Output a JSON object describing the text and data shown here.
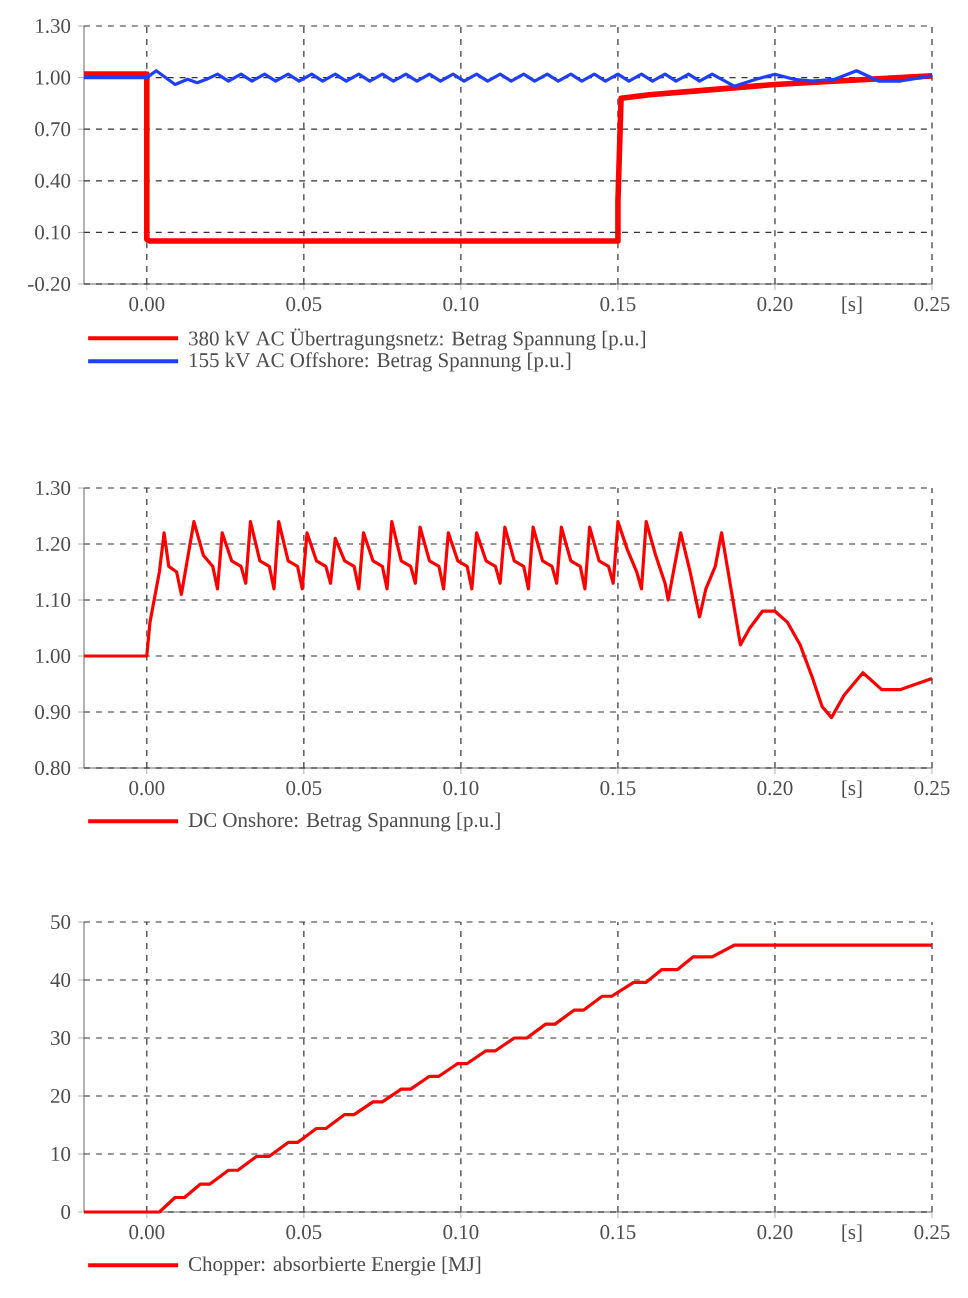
{
  "chart_data": [
    {
      "type": "line",
      "xlabel": "[s]",
      "xlim": [
        -0.02,
        0.25
      ],
      "ylim": [
        -0.2,
        1.3
      ],
      "xticks": [
        {
          "value": 0,
          "label": "0.00"
        },
        {
          "value": 0.05,
          "label": "0.05"
        },
        {
          "value": 0.1,
          "label": "0.10"
        },
        {
          "value": 0.15,
          "label": "0.15"
        },
        {
          "value": 0.2,
          "label": "0.20"
        },
        {
          "value": 0.25,
          "label": "0.25"
        }
      ],
      "yticks": [
        {
          "value": -0.2,
          "label": "-0.20"
        },
        {
          "value": 0.1,
          "label": "0.10"
        },
        {
          "value": 0.4,
          "label": "0.40"
        },
        {
          "value": 0.7,
          "label": "0.70"
        },
        {
          "value": 1.0,
          "label": "1.00"
        },
        {
          "value": 1.3,
          "label": "1.30"
        }
      ],
      "grid": true,
      "legend": "bottom",
      "series": [
        {
          "name": "380 kV AC Übertragungsnetz: Betrag Spannung [p.u.]",
          "color": "#ff0000",
          "x": [
            -0.02,
            0,
            0,
            0.001,
            0.15,
            0.15,
            0.151,
            0.16,
            0.18,
            0.2,
            0.22,
            0.24,
            0.25
          ],
          "values": [
            1.02,
            1.02,
            0.06,
            0.05,
            0.05,
            0.28,
            0.88,
            0.9,
            0.93,
            0.96,
            0.98,
            1.0,
            1.01
          ]
        },
        {
          "name": "155 kV AC Offshore: Betrag Spannung [p.u.]",
          "color": "#1f3fff",
          "x": [
            -0.02,
            0,
            0.003,
            0.009,
            0.013,
            0.016,
            0.019,
            0.0225,
            0.026,
            0.03,
            0.0335,
            0.0375,
            0.041,
            0.045,
            0.0485,
            0.0525,
            0.056,
            0.06,
            0.0635,
            0.0675,
            0.071,
            0.075,
            0.0785,
            0.0825,
            0.086,
            0.09,
            0.0935,
            0.0975,
            0.101,
            0.105,
            0.1085,
            0.1125,
            0.116,
            0.12,
            0.1235,
            0.1275,
            0.131,
            0.135,
            0.1385,
            0.1425,
            0.146,
            0.15,
            0.1535,
            0.1575,
            0.161,
            0.165,
            0.1685,
            0.1725,
            0.176,
            0.18,
            0.187,
            0.194,
            0.2,
            0.206,
            0.212,
            0.219,
            0.226,
            0.233,
            0.24,
            0.25
          ],
          "values": [
            1.0,
            1.0,
            1.04,
            0.96,
            0.99,
            0.97,
            0.99,
            1.02,
            0.98,
            1.02,
            0.98,
            1.02,
            0.98,
            1.02,
            0.98,
            1.02,
            0.98,
            1.02,
            0.98,
            1.02,
            0.98,
            1.02,
            0.98,
            1.02,
            0.98,
            1.02,
            0.98,
            1.02,
            0.98,
            1.02,
            0.98,
            1.02,
            0.98,
            1.02,
            0.98,
            1.02,
            0.98,
            1.02,
            0.98,
            1.02,
            0.98,
            1.02,
            0.98,
            1.02,
            0.98,
            1.02,
            0.98,
            1.02,
            0.98,
            1.02,
            0.95,
            0.99,
            1.02,
            0.99,
            0.98,
            0.99,
            1.04,
            0.98,
            0.98,
            1.01
          ]
        }
      ]
    },
    {
      "type": "line",
      "xlabel": "[s]",
      "xlim": [
        -0.02,
        0.25
      ],
      "ylim": [
        0.8,
        1.3
      ],
      "xticks": [
        {
          "value": 0,
          "label": "0.00"
        },
        {
          "value": 0.05,
          "label": "0.05"
        },
        {
          "value": 0.1,
          "label": "0.10"
        },
        {
          "value": 0.15,
          "label": "0.15"
        },
        {
          "value": 0.2,
          "label": "0.20"
        },
        {
          "value": 0.25,
          "label": "0.25"
        }
      ],
      "yticks": [
        {
          "value": 0.8,
          "label": "0.80"
        },
        {
          "value": 0.9,
          "label": "0.90"
        },
        {
          "value": 1.0,
          "label": "1.00"
        },
        {
          "value": 1.1,
          "label": "1.10"
        },
        {
          "value": 1.2,
          "label": "1.20"
        },
        {
          "value": 1.3,
          "label": "1.30"
        }
      ],
      "grid": true,
      "legend": "bottom",
      "series": [
        {
          "name": "DC Onshore: Betrag Spannung [p.u.]",
          "color": "#ff0000",
          "x": [
            -0.02,
            0,
            0.001,
            0.004,
            0.0055,
            0.007,
            0.0095,
            0.011,
            0.015,
            0.018,
            0.021,
            0.0225,
            0.024,
            0.027,
            0.03,
            0.0315,
            0.033,
            0.036,
            0.039,
            0.0405,
            0.042,
            0.045,
            0.048,
            0.0495,
            0.051,
            0.054,
            0.057,
            0.0585,
            0.06,
            0.063,
            0.066,
            0.0675,
            0.069,
            0.072,
            0.075,
            0.0765,
            0.078,
            0.081,
            0.084,
            0.0855,
            0.087,
            0.09,
            0.093,
            0.0945,
            0.096,
            0.099,
            0.102,
            0.1035,
            0.105,
            0.108,
            0.111,
            0.1125,
            0.114,
            0.117,
            0.12,
            0.1215,
            0.123,
            0.126,
            0.129,
            0.1305,
            0.132,
            0.135,
            0.138,
            0.1395,
            0.141,
            0.144,
            0.147,
            0.1485,
            0.15,
            0.153,
            0.156,
            0.1575,
            0.159,
            0.162,
            0.165,
            0.166,
            0.17,
            0.173,
            0.176,
            0.178,
            0.181,
            0.183,
            0.186,
            0.189,
            0.192,
            0.196,
            0.2,
            0.204,
            0.208,
            0.212,
            0.215,
            0.218,
            0.222,
            0.228,
            0.234,
            0.24,
            0.245,
            0.25
          ],
          "values": [
            1.0,
            1.0,
            1.06,
            1.15,
            1.22,
            1.16,
            1.15,
            1.11,
            1.24,
            1.18,
            1.16,
            1.12,
            1.22,
            1.17,
            1.16,
            1.13,
            1.24,
            1.17,
            1.16,
            1.12,
            1.24,
            1.17,
            1.16,
            1.12,
            1.22,
            1.17,
            1.16,
            1.13,
            1.21,
            1.17,
            1.16,
            1.12,
            1.22,
            1.17,
            1.16,
            1.12,
            1.24,
            1.17,
            1.16,
            1.13,
            1.23,
            1.17,
            1.16,
            1.12,
            1.22,
            1.17,
            1.16,
            1.12,
            1.22,
            1.17,
            1.16,
            1.13,
            1.23,
            1.17,
            1.16,
            1.12,
            1.23,
            1.17,
            1.16,
            1.13,
            1.23,
            1.17,
            1.16,
            1.12,
            1.23,
            1.17,
            1.16,
            1.13,
            1.24,
            1.19,
            1.15,
            1.12,
            1.24,
            1.18,
            1.13,
            1.1,
            1.22,
            1.15,
            1.07,
            1.12,
            1.16,
            1.22,
            1.12,
            1.02,
            1.05,
            1.08,
            1.08,
            1.06,
            1.02,
            0.96,
            0.91,
            0.89,
            0.93,
            0.97,
            0.94,
            0.94,
            0.95,
            0.96
          ]
        }
      ]
    },
    {
      "type": "line",
      "xlabel": "[s]",
      "xlim": [
        -0.02,
        0.25
      ],
      "ylim": [
        0,
        50
      ],
      "xticks": [
        {
          "value": 0,
          "label": "0.00"
        },
        {
          "value": 0.05,
          "label": "0.05"
        },
        {
          "value": 0.1,
          "label": "0.10"
        },
        {
          "value": 0.15,
          "label": "0.15"
        },
        {
          "value": 0.2,
          "label": "0.20"
        },
        {
          "value": 0.25,
          "label": "0.25"
        }
      ],
      "yticks": [
        0,
        10,
        20,
        30,
        40,
        50
      ],
      "grid": true,
      "legend": "bottom",
      "series": [
        {
          "name": "Chopper: absorbierte Energie [MJ]",
          "color": "#ff0000",
          "x": [
            -0.02,
            0.004,
            0.009,
            0.012,
            0.017,
            0.02,
            0.026,
            0.029,
            0.035,
            0.039,
            0.045,
            0.048,
            0.054,
            0.057,
            0.063,
            0.066,
            0.072,
            0.075,
            0.081,
            0.084,
            0.09,
            0.093,
            0.099,
            0.102,
            0.108,
            0.111,
            0.117,
            0.121,
            0.127,
            0.13,
            0.136,
            0.139,
            0.145,
            0.148,
            0.155,
            0.159,
            0.164,
            0.169,
            0.174,
            0.18,
            0.187,
            0.25
          ],
          "values": [
            0,
            0,
            2.5,
            2.5,
            4.8,
            4.8,
            7.2,
            7.2,
            9.6,
            9.6,
            12,
            12,
            14.4,
            14.4,
            16.8,
            16.8,
            19,
            19,
            21.2,
            21.2,
            23.4,
            23.4,
            25.6,
            25.6,
            27.8,
            27.8,
            30,
            30,
            32.4,
            32.4,
            34.8,
            34.8,
            37.2,
            37.2,
            39.6,
            39.6,
            41.8,
            41.8,
            44,
            44,
            46,
            46
          ]
        }
      ]
    }
  ]
}
